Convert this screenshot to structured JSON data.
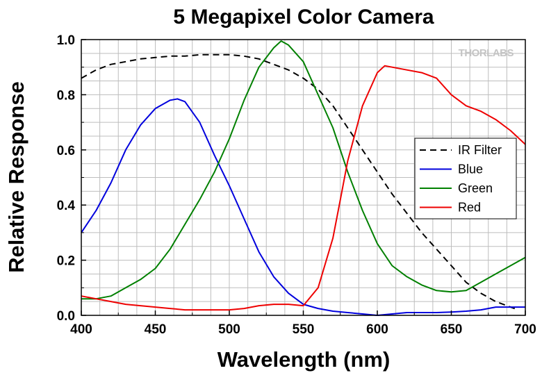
{
  "chart_data": {
    "type": "line",
    "title": "5 Megapixel Color Camera",
    "xlabel": "Wavelength (nm)",
    "ylabel": "Relative Response",
    "xlim": [
      400,
      700
    ],
    "ylim": [
      0,
      1.0
    ],
    "xticks": [
      400,
      450,
      500,
      550,
      600,
      650,
      700
    ],
    "yticks": [
      "0.0",
      "0.2",
      "0.4",
      "0.6",
      "0.8",
      "1.0"
    ],
    "grid": true,
    "legend_position": "right",
    "watermark": "THORLABS",
    "series": [
      {
        "name": "IR Filter",
        "color": "#000000",
        "dash": "dashed",
        "x": [
          400,
          410,
          420,
          430,
          440,
          450,
          460,
          470,
          480,
          490,
          500,
          510,
          520,
          530,
          540,
          550,
          560,
          570,
          580,
          590,
          600,
          610,
          620,
          630,
          640,
          650,
          660,
          670,
          680,
          690,
          695
        ],
        "y": [
          0.86,
          0.89,
          0.91,
          0.92,
          0.93,
          0.935,
          0.94,
          0.94,
          0.945,
          0.945,
          0.945,
          0.94,
          0.93,
          0.91,
          0.89,
          0.86,
          0.82,
          0.76,
          0.68,
          0.6,
          0.52,
          0.44,
          0.37,
          0.3,
          0.24,
          0.18,
          0.12,
          0.08,
          0.05,
          0.03,
          0.02
        ]
      },
      {
        "name": "Blue",
        "color": "#0000dd",
        "dash": "solid",
        "x": [
          400,
          410,
          420,
          430,
          440,
          450,
          460,
          465,
          470,
          480,
          490,
          500,
          510,
          520,
          530,
          540,
          550,
          560,
          570,
          580,
          590,
          600,
          610,
          620,
          630,
          640,
          650,
          660,
          670,
          680,
          690,
          700
        ],
        "y": [
          0.3,
          0.38,
          0.48,
          0.6,
          0.69,
          0.75,
          0.78,
          0.785,
          0.775,
          0.7,
          0.58,
          0.47,
          0.35,
          0.23,
          0.14,
          0.08,
          0.04,
          0.025,
          0.015,
          0.01,
          0.005,
          0.0,
          0.005,
          0.01,
          0.01,
          0.01,
          0.012,
          0.015,
          0.02,
          0.03,
          0.03,
          0.03
        ]
      },
      {
        "name": "Green",
        "color": "#008000",
        "dash": "solid",
        "x": [
          400,
          410,
          420,
          430,
          440,
          450,
          460,
          470,
          480,
          490,
          500,
          510,
          520,
          530,
          535,
          540,
          550,
          560,
          570,
          580,
          590,
          600,
          610,
          620,
          630,
          640,
          650,
          660,
          670,
          680,
          690,
          700
        ],
        "y": [
          0.06,
          0.06,
          0.07,
          0.1,
          0.13,
          0.17,
          0.24,
          0.33,
          0.42,
          0.52,
          0.64,
          0.78,
          0.9,
          0.97,
          0.995,
          0.98,
          0.92,
          0.8,
          0.68,
          0.52,
          0.38,
          0.26,
          0.18,
          0.14,
          0.11,
          0.09,
          0.085,
          0.09,
          0.12,
          0.15,
          0.18,
          0.21
        ]
      },
      {
        "name": "Red",
        "color": "#ee0000",
        "dash": "solid",
        "x": [
          400,
          410,
          420,
          430,
          440,
          450,
          460,
          470,
          480,
          490,
          500,
          510,
          520,
          530,
          540,
          550,
          560,
          570,
          575,
          580,
          590,
          600,
          605,
          610,
          620,
          630,
          640,
          650,
          660,
          670,
          680,
          690,
          700
        ],
        "y": [
          0.07,
          0.06,
          0.05,
          0.04,
          0.035,
          0.03,
          0.025,
          0.02,
          0.02,
          0.02,
          0.02,
          0.025,
          0.035,
          0.04,
          0.04,
          0.035,
          0.1,
          0.28,
          0.42,
          0.56,
          0.76,
          0.88,
          0.905,
          0.9,
          0.89,
          0.88,
          0.86,
          0.8,
          0.76,
          0.74,
          0.71,
          0.67,
          0.62
        ]
      }
    ]
  }
}
